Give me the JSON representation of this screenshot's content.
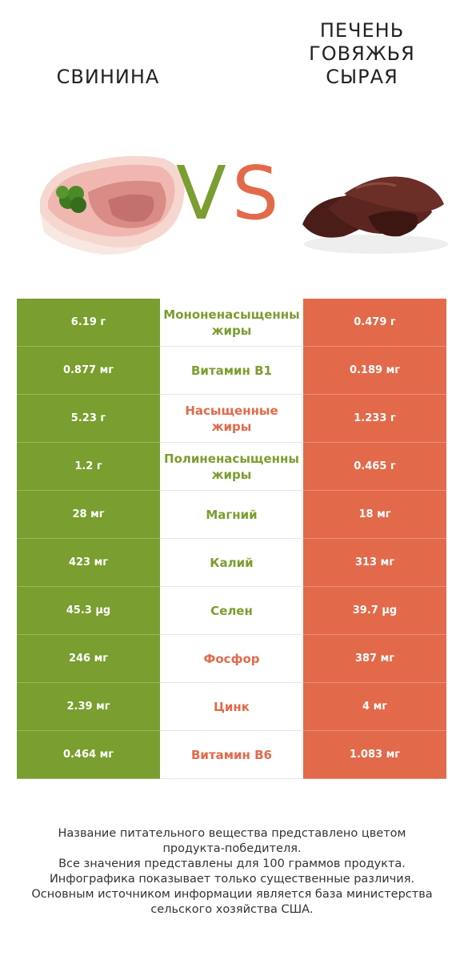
{
  "colors": {
    "left": "#7a9e2f",
    "right": "#e26a4a"
  },
  "header": {
    "left_title": "Свинина",
    "right_title_lines": [
      "Печень",
      "Говяжья",
      "Сырая"
    ],
    "vs_v": "V",
    "vs_s": "S"
  },
  "rows": [
    {
      "left": "6.19 г",
      "nutrient": [
        "Мононенасыщенны",
        "жиры"
      ],
      "right": "0.479 г",
      "winner": "left"
    },
    {
      "left": "0.877 мг",
      "nutrient": [
        "Витамин B1"
      ],
      "right": "0.189 мг",
      "winner": "left"
    },
    {
      "left": "5.23 г",
      "nutrient": [
        "Насыщенные",
        "жиры"
      ],
      "right": "1.233 г",
      "winner": "right"
    },
    {
      "left": "1.2 г",
      "nutrient": [
        "Полиненасыщенны",
        "жиры"
      ],
      "right": "0.465 г",
      "winner": "left"
    },
    {
      "left": "28 мг",
      "nutrient": [
        "Магний"
      ],
      "right": "18 мг",
      "winner": "left"
    },
    {
      "left": "423 мг",
      "nutrient": [
        "Калий"
      ],
      "right": "313 мг",
      "winner": "left"
    },
    {
      "left": "45.3 µg",
      "nutrient": [
        "Селен"
      ],
      "right": "39.7 µg",
      "winner": "left"
    },
    {
      "left": "246 мг",
      "nutrient": [
        "Фосфор"
      ],
      "right": "387 мг",
      "winner": "right"
    },
    {
      "left": "2.39 мг",
      "nutrient": [
        "Цинк"
      ],
      "right": "4 мг",
      "winner": "right"
    },
    {
      "left": "0.464 мг",
      "nutrient": [
        "Витамин B6"
      ],
      "right": "1.083 мг",
      "winner": "right"
    }
  ],
  "footer": [
    "Название питательного вещества представлено цветом",
    "продукта-победителя.",
    "Все значения представлены для 100 граммов продукта.",
    "Инфографика показывает только существенные различия.",
    "Основным источником информации является база министерства",
    "сельского хозяйства США."
  ]
}
